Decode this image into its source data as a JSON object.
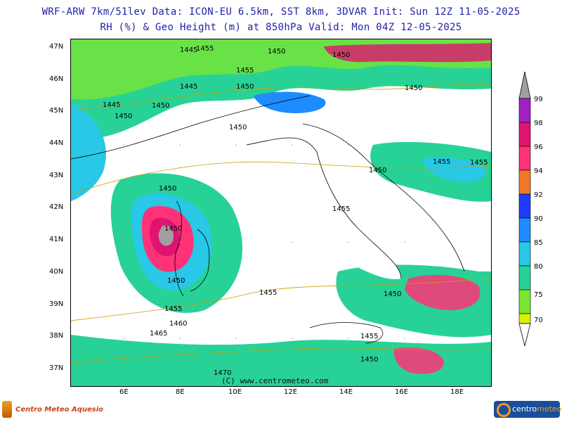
{
  "header": {
    "title_line1": "WRF-ARW 7km/51lev  Data: ICON-EU 6.5km, SST 8km, 3DVAR  Init: Sun 12Z 11-05-2025",
    "title_line2": "RH (%) & Geo Height (m) at 850hPa  Valid: Mon 04Z 12-05-2025"
  },
  "map": {
    "lat_labels": [
      "47N",
      "46N",
      "45N",
      "44N",
      "43N",
      "42N",
      "41N",
      "40N",
      "39N",
      "38N",
      "37N"
    ],
    "lon_labels": [
      "6E",
      "8E",
      "10E",
      "12E",
      "14E",
      "16E",
      "18E"
    ],
    "contour_labels": [
      "1445",
      "1455",
      "1450",
      "1455",
      "1450",
      "1445",
      "1450",
      "1450",
      "1445",
      "1450",
      "1450",
      "1450",
      "1455",
      "1455",
      "1450",
      "1450",
      "1455",
      "1450",
      "1450",
      "1455",
      "1455",
      "1460",
      "1465",
      "1450",
      "1455",
      "1450",
      "1470"
    ],
    "copyright": "(C) www.centrometeo.com"
  },
  "legend": {
    "ticks": [
      "99",
      "98",
      "96",
      "94",
      "92",
      "90",
      "85",
      "80",
      "75",
      "70"
    ],
    "colors": {
      "100": "#a0a0a0",
      "99": "#a020c8",
      "98": "#e01470",
      "96": "#ff3278",
      "94": "#f07828",
      "92": "#1e3cff",
      "90": "#1e8cff",
      "85": "#28c8e6",
      "80": "#28d296",
      "75": "#78e632",
      "70": "#dcf000"
    }
  },
  "logos": {
    "left": "Centro Meteo Aquesio",
    "right_a": "centro",
    "right_b": "meteo"
  }
}
